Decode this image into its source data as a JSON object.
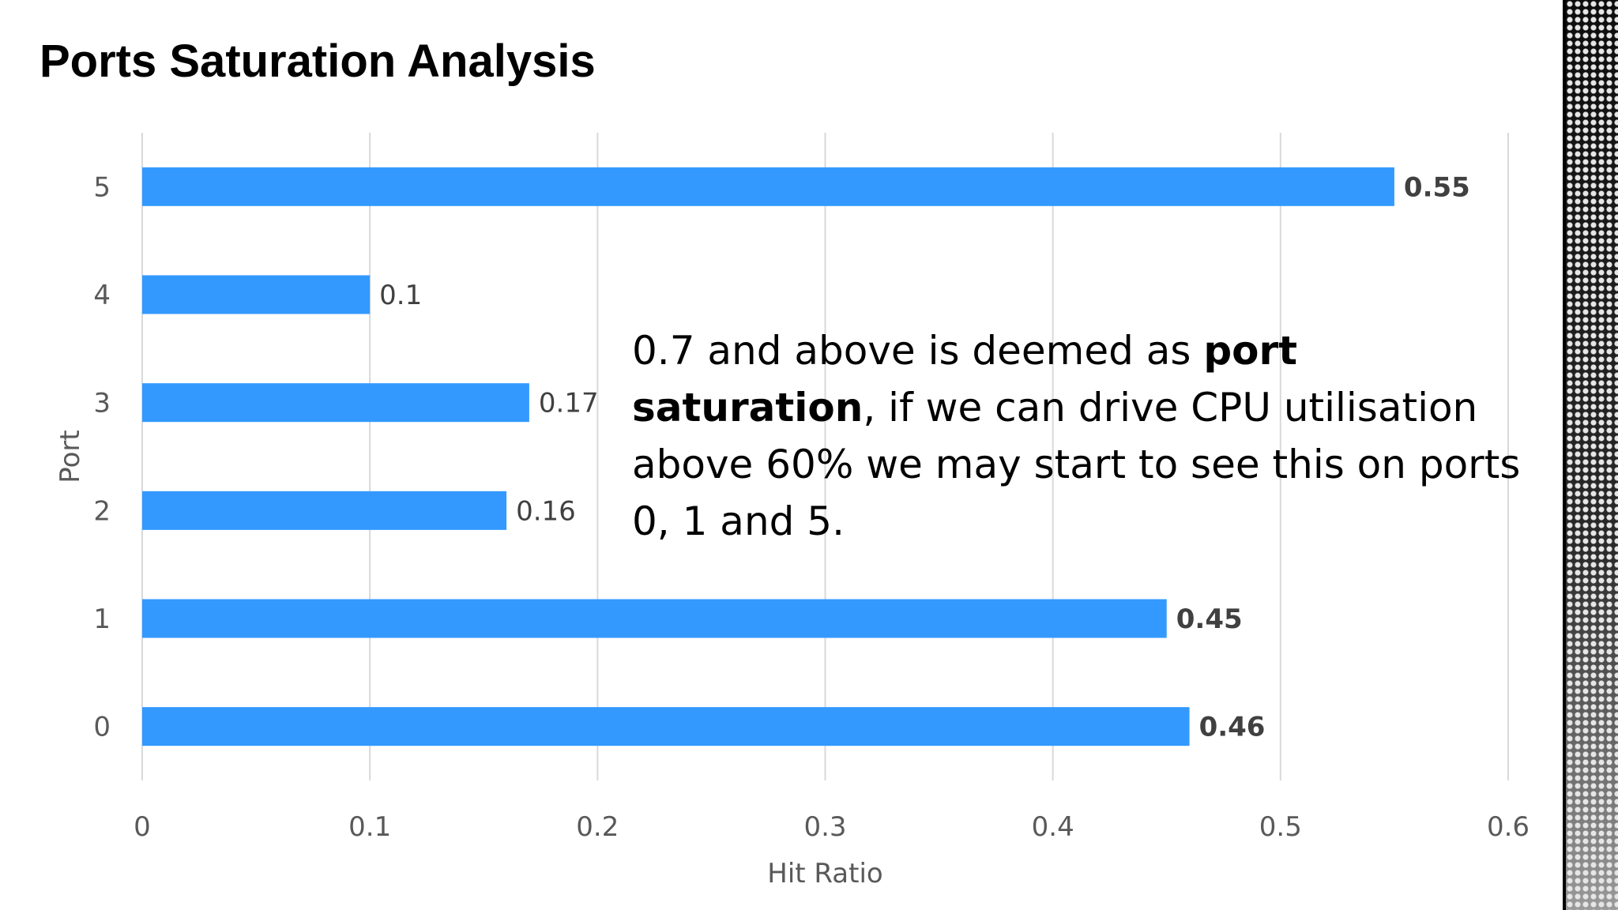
{
  "slide": {
    "title": "Ports Saturation Analysis",
    "annotation": {
      "part1": "0.7 and above is deemed as ",
      "bold": "port saturation",
      "part2": ", if we can drive CPU utilisation above 60% we may start to see this on ports 0, 1 and 5."
    }
  },
  "chart_data": {
    "type": "bar",
    "orientation": "horizontal",
    "categories": [
      "5",
      "4",
      "3",
      "2",
      "1",
      "0"
    ],
    "values": [
      0.55,
      0.1,
      0.17,
      0.16,
      0.45,
      0.46
    ],
    "data_labels": [
      "0.55",
      "0.1",
      "0.17",
      "0.16",
      "0.45",
      "0.46"
    ],
    "bold_labels": [
      true,
      false,
      false,
      false,
      true,
      true
    ],
    "xlabel": "Hit Ratio",
    "ylabel": "Port",
    "xlim": [
      0,
      0.6
    ],
    "x_ticks": [
      "0",
      "0.1",
      "0.2",
      "0.3",
      "0.4",
      "0.5",
      "0.6"
    ],
    "grid": "vertical",
    "bar_color": "#3399ff",
    "grid_color": "#d9d9d9"
  }
}
